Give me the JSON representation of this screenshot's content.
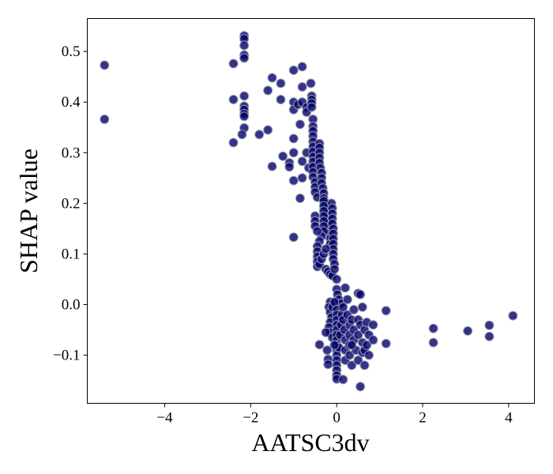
{
  "chart_data": {
    "type": "scatter",
    "title": "",
    "xlabel": "AATSC3dv",
    "ylabel": "SHAP value",
    "xlim": [
      -5.8,
      4.6
    ],
    "ylim": [
      -0.195,
      0.565
    ],
    "xticks": [
      -4,
      -2,
      0,
      2,
      4
    ],
    "xtick_labels": [
      "−4",
      "−2",
      "0",
      "2",
      "4"
    ],
    "yticks": [
      -0.1,
      0.0,
      0.1,
      0.2,
      0.3,
      0.4,
      0.5
    ],
    "ytick_labels": [
      "−0.1",
      "0.0",
      "0.1",
      "0.2",
      "0.3",
      "0.4",
      "0.5"
    ],
    "grid": false,
    "legend": "none",
    "marker_color": "#00006e",
    "marker_edge_color": "#9a9aa8",
    "points": [
      [
        -5.4,
        0.473
      ],
      [
        -5.4,
        0.366
      ],
      [
        -2.4,
        0.476
      ],
      [
        -2.4,
        0.405
      ],
      [
        -2.4,
        0.32
      ],
      [
        -2.15,
        0.531
      ],
      [
        -2.15,
        0.525
      ],
      [
        -2.15,
        0.512
      ],
      [
        -2.15,
        0.493
      ],
      [
        -2.15,
        0.487
      ],
      [
        -2.15,
        0.412
      ],
      [
        -2.15,
        0.392
      ],
      [
        -2.15,
        0.385
      ],
      [
        -2.15,
        0.377
      ],
      [
        -2.15,
        0.372
      ],
      [
        -2.15,
        0.349
      ],
      [
        -2.2,
        0.336
      ],
      [
        -1.8,
        0.336
      ],
      [
        -1.6,
        0.423
      ],
      [
        -1.6,
        0.345
      ],
      [
        -1.5,
        0.448
      ],
      [
        -1.5,
        0.273
      ],
      [
        -1.3,
        0.437
      ],
      [
        -1.3,
        0.405
      ],
      [
        -1.25,
        0.293
      ],
      [
        -1.1,
        0.28
      ],
      [
        -1.1,
        0.272
      ],
      [
        -1.0,
        0.463
      ],
      [
        -1.0,
        0.4
      ],
      [
        -1.0,
        0.385
      ],
      [
        -1.0,
        0.328
      ],
      [
        -1.0,
        0.3
      ],
      [
        -1.0,
        0.245
      ],
      [
        -1.0,
        0.133
      ],
      [
        -0.9,
        0.395
      ],
      [
        -0.85,
        0.356
      ],
      [
        -0.85,
        0.21
      ],
      [
        -0.8,
        0.47
      ],
      [
        -0.8,
        0.43
      ],
      [
        -0.8,
        0.4
      ],
      [
        -0.8,
        0.283
      ],
      [
        -0.8,
        0.25
      ],
      [
        -0.7,
        0.39
      ],
      [
        -0.7,
        0.38
      ],
      [
        -0.7,
        0.3
      ],
      [
        -0.65,
        0.27
      ],
      [
        -0.6,
        0.437
      ],
      [
        -0.58,
        0.412
      ],
      [
        -0.58,
        0.405
      ],
      [
        -0.58,
        0.398
      ],
      [
        -0.58,
        0.39
      ],
      [
        -0.55,
        0.366
      ],
      [
        -0.55,
        0.352
      ],
      [
        -0.55,
        0.343
      ],
      [
        -0.55,
        0.333
      ],
      [
        -0.55,
        0.322
      ],
      [
        -0.55,
        0.312
      ],
      [
        -0.55,
        0.302
      ],
      [
        -0.55,
        0.292
      ],
      [
        -0.55,
        0.282
      ],
      [
        -0.55,
        0.272
      ],
      [
        -0.55,
        0.262
      ],
      [
        -0.55,
        0.252
      ],
      [
        -0.5,
        0.242
      ],
      [
        -0.5,
        0.232
      ],
      [
        -0.5,
        0.222
      ],
      [
        -0.45,
        0.212
      ],
      [
        -0.4,
        0.318
      ],
      [
        -0.4,
        0.31
      ],
      [
        -0.4,
        0.3
      ],
      [
        -0.4,
        0.29
      ],
      [
        -0.4,
        0.28
      ],
      [
        -0.38,
        0.27
      ],
      [
        -0.35,
        0.26
      ],
      [
        -0.35,
        0.25
      ],
      [
        -0.35,
        0.24
      ],
      [
        -0.32,
        0.23
      ],
      [
        -0.3,
        0.22
      ],
      [
        -0.3,
        0.21
      ],
      [
        -0.28,
        0.2
      ],
      [
        -0.25,
        0.19
      ],
      [
        -0.25,
        0.18
      ],
      [
        -0.22,
        0.17
      ],
      [
        -0.2,
        0.16
      ],
      [
        -0.2,
        0.15
      ],
      [
        -0.18,
        0.14
      ],
      [
        -0.15,
        0.13
      ],
      [
        -0.15,
        0.12
      ],
      [
        -0.12,
        0.2
      ],
      [
        -0.1,
        0.19
      ],
      [
        -0.1,
        0.18
      ],
      [
        -0.1,
        0.17
      ],
      [
        -0.1,
        0.16
      ],
      [
        -0.08,
        0.15
      ],
      [
        -0.08,
        0.14
      ],
      [
        -0.08,
        0.13
      ],
      [
        -0.08,
        0.12
      ],
      [
        -0.08,
        0.11
      ],
      [
        -0.08,
        0.1
      ],
      [
        -0.08,
        0.09
      ],
      [
        -0.3,
        0.205
      ],
      [
        -0.3,
        0.195
      ],
      [
        -0.3,
        0.185
      ],
      [
        -0.3,
        0.175
      ],
      [
        -0.3,
        0.165
      ],
      [
        -0.3,
        0.155
      ],
      [
        -0.3,
        0.145
      ],
      [
        -0.35,
        0.135
      ],
      [
        -0.4,
        0.125
      ],
      [
        -0.45,
        0.115
      ],
      [
        -0.5,
        0.175
      ],
      [
        -0.5,
        0.165
      ],
      [
        -0.5,
        0.155
      ],
      [
        -0.45,
        0.145
      ],
      [
        -0.45,
        0.105
      ],
      [
        -0.45,
        0.095
      ],
      [
        -0.45,
        0.085
      ],
      [
        -0.45,
        0.075
      ],
      [
        -0.4,
        0.08
      ],
      [
        -0.35,
        0.09
      ],
      [
        -0.3,
        0.1
      ],
      [
        -0.25,
        0.11
      ],
      [
        -0.25,
        0.07
      ],
      [
        -0.2,
        0.065
      ],
      [
        -0.15,
        0.06
      ],
      [
        -0.1,
        0.057
      ],
      [
        -0.05,
        0.08
      ],
      [
        -0.05,
        0.07
      ],
      [
        0.0,
        0.05
      ],
      [
        0.0,
        0.03
      ],
      [
        0.02,
        0.02
      ],
      [
        0.05,
        0.01
      ],
      [
        0.1,
        0.002
      ],
      [
        -0.15,
        0.005
      ],
      [
        -0.18,
        -0.005
      ],
      [
        -0.15,
        -0.015
      ],
      [
        -0.12,
        -0.025
      ],
      [
        -0.15,
        -0.035
      ],
      [
        -0.18,
        -0.045
      ],
      [
        -0.15,
        -0.055
      ],
      [
        -0.1,
        -0.065
      ],
      [
        -0.1,
        -0.005
      ],
      [
        -0.05,
        0.005
      ],
      [
        0.0,
        -0.01
      ],
      [
        0.0,
        -0.02
      ],
      [
        0.0,
        -0.03
      ],
      [
        0.0,
        -0.04
      ],
      [
        0.0,
        -0.05
      ],
      [
        0.0,
        -0.06
      ],
      [
        0.0,
        -0.07
      ],
      [
        0.0,
        -0.08
      ],
      [
        0.0,
        -0.09
      ],
      [
        0.0,
        -0.1
      ],
      [
        0.0,
        -0.11
      ],
      [
        0.0,
        -0.12
      ],
      [
        0.0,
        -0.13
      ],
      [
        0.0,
        -0.14
      ],
      [
        0.0,
        -0.147
      ],
      [
        0.05,
        -0.085
      ],
      [
        0.08,
        -0.06
      ],
      [
        0.1,
        -0.04
      ],
      [
        0.12,
        -0.02
      ],
      [
        0.15,
        -0.005
      ],
      [
        0.15,
        -0.03
      ],
      [
        0.18,
        -0.05
      ],
      [
        0.2,
        -0.07
      ],
      [
        0.2,
        -0.09
      ],
      [
        0.2,
        -0.11
      ],
      [
        0.15,
        -0.148
      ],
      [
        0.25,
        0.01
      ],
      [
        0.25,
        -0.02
      ],
      [
        0.3,
        -0.04
      ],
      [
        0.3,
        -0.06
      ],
      [
        0.3,
        -0.08
      ],
      [
        0.3,
        -0.1
      ],
      [
        0.35,
        -0.12
      ],
      [
        0.35,
        -0.03
      ],
      [
        0.4,
        -0.01
      ],
      [
        0.4,
        -0.05
      ],
      [
        0.4,
        -0.07
      ],
      [
        0.45,
        -0.09
      ],
      [
        0.5,
        0.022
      ],
      [
        0.5,
        -0.03
      ],
      [
        0.5,
        -0.06
      ],
      [
        0.5,
        -0.11
      ],
      [
        0.55,
        -0.162
      ],
      [
        0.55,
        0.02
      ],
      [
        0.55,
        -0.04
      ],
      [
        0.6,
        -0.005
      ],
      [
        0.6,
        -0.075
      ],
      [
        0.6,
        -0.095
      ],
      [
        0.65,
        -0.05
      ],
      [
        0.65,
        -0.09
      ],
      [
        0.65,
        -0.12
      ],
      [
        0.7,
        -0.035
      ],
      [
        0.7,
        -0.08
      ],
      [
        0.75,
        -0.06
      ],
      [
        0.85,
        -0.04
      ],
      [
        0.85,
        -0.07
      ],
      [
        0.75,
        -0.1
      ],
      [
        1.15,
        -0.012
      ],
      [
        1.15,
        -0.077
      ],
      [
        -0.4,
        -0.079
      ],
      [
        -0.25,
        -0.055
      ],
      [
        -0.22,
        -0.09
      ],
      [
        0.2,
        0.033
      ],
      [
        -0.2,
        -0.108
      ],
      [
        -0.2,
        -0.118
      ],
      [
        -0.05,
        -0.08
      ],
      [
        0.35,
        -0.08
      ],
      [
        2.25,
        -0.047
      ],
      [
        2.25,
        -0.075
      ],
      [
        3.05,
        -0.052
      ],
      [
        3.55,
        -0.041
      ],
      [
        3.55,
        -0.063
      ],
      [
        4.1,
        -0.022
      ]
    ]
  }
}
